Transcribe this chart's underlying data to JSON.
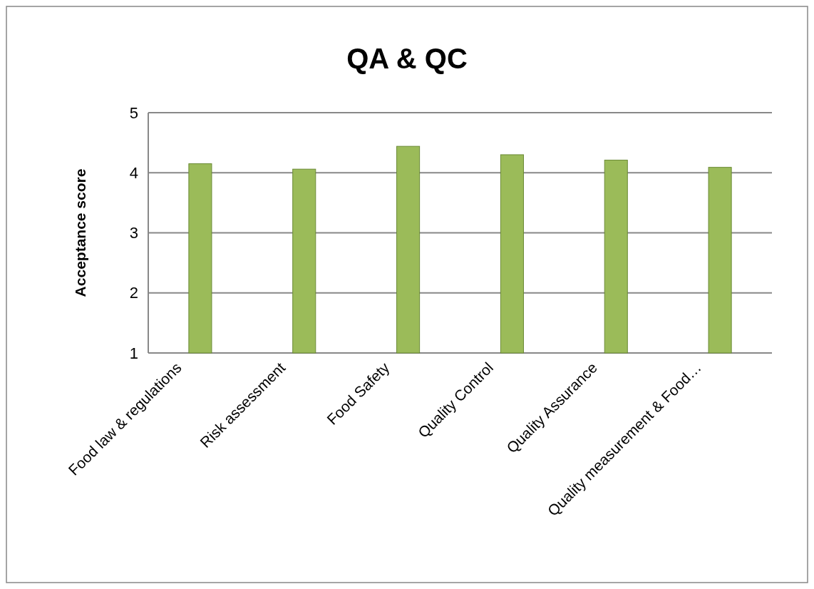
{
  "chart_data": {
    "type": "bar",
    "title": "QA & QC",
    "ylabel": "Acceptance score",
    "categories": [
      "Food law & regulations",
      "Risk assessment",
      "Food Safety",
      "Quality Control",
      "Quality Assurance",
      "Quality measurement & Food…"
    ],
    "values": [
      4.15,
      4.06,
      4.44,
      4.3,
      4.21,
      4.09
    ],
    "color": "#9bbb59",
    "ylim": [
      1,
      5
    ],
    "yticks": [
      1,
      2,
      3,
      4,
      5
    ],
    "grid": "y"
  }
}
